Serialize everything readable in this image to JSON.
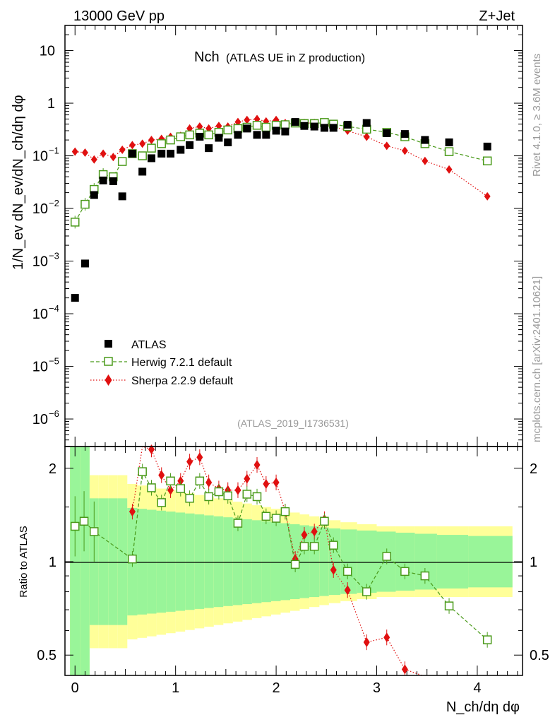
{
  "header": {
    "energy": "13000 GeV pp",
    "process": "Z+Jet"
  },
  "sidebar": {
    "rivet": "Rivet 4.1.0, ≥ 3.6M events",
    "mcplots": "mcplots.cern.ch [arXiv:2401.10621]"
  },
  "plot": {
    "title_main": "Nch",
    "title_sub": "(ATLAS UE in Z production)",
    "watermark": "(ATLAS_2019_I1736531)",
    "ylabel_top": "1/N_ev dN_ev/dN_ch/dη dφ",
    "ylabel_ratio": "Ratio to ATLAS",
    "xlabel": "N_ch/dη dφ"
  },
  "chart_data": {
    "type": "scatter",
    "title": "Nch (ATLAS UE in Z production)",
    "xlabel": "N_ch/dη dφ",
    "ylabel": "1/N_ev dN_ev/dN_ch/dη dφ",
    "yscale": "log",
    "xlim": [
      -0.1,
      4.45
    ],
    "ylim": [
      3e-07,
      30
    ],
    "xticks": [
      "0",
      "1",
      "2",
      "3",
      "4"
    ],
    "yticks": [
      "10^-6",
      "10^-5",
      "10^-4",
      "10^-3",
      "10^-2",
      "10^-1",
      "1",
      "10"
    ],
    "legend": [
      "ATLAS",
      "Herwig 7.2.1 default",
      "Sherpa 2.2.9 default"
    ],
    "legend_colors": {
      "ATLAS": "#000000",
      "Herwig": "#4a9a1a",
      "Sherpa": "#e01010"
    },
    "series": [
      {
        "name": "ATLAS",
        "x": [
          0.0,
          0.1,
          0.19,
          0.28,
          0.38,
          0.47,
          0.57,
          0.67,
          0.76,
          0.86,
          0.95,
          1.05,
          1.14,
          1.24,
          1.33,
          1.43,
          1.52,
          1.62,
          1.71,
          1.81,
          1.9,
          2.0,
          2.09,
          2.19,
          2.28,
          2.38,
          2.48,
          2.57,
          2.71,
          2.9,
          3.1,
          3.28,
          3.48,
          3.72,
          4.1
        ],
        "values": [
          0.0002,
          0.0009,
          0.018,
          0.034,
          0.033,
          0.017,
          0.11,
          0.05,
          0.09,
          0.11,
          0.11,
          0.13,
          0.16,
          0.23,
          0.14,
          0.22,
          0.18,
          0.25,
          0.33,
          0.25,
          0.25,
          0.3,
          0.29,
          0.44,
          0.37,
          0.36,
          0.34,
          0.34,
          0.39,
          0.42,
          0.27,
          0.26,
          0.2,
          0.18,
          0.15
        ]
      },
      {
        "name": "Herwig 7.2.1 default",
        "x": [
          0.0,
          0.1,
          0.19,
          0.28,
          0.38,
          0.47,
          0.57,
          0.67,
          0.76,
          0.86,
          0.95,
          1.05,
          1.14,
          1.24,
          1.33,
          1.43,
          1.52,
          1.62,
          1.71,
          1.81,
          1.9,
          2.0,
          2.09,
          2.19,
          2.28,
          2.38,
          2.48,
          2.57,
          2.71,
          2.9,
          3.1,
          3.28,
          3.48,
          3.72,
          4.1
        ],
        "values": [
          0.0055,
          0.012,
          0.023,
          0.044,
          0.04,
          0.078,
          0.11,
          0.1,
          0.14,
          0.17,
          0.2,
          0.23,
          0.25,
          0.27,
          0.25,
          0.28,
          0.31,
          0.33,
          0.35,
          0.38,
          0.35,
          0.38,
          0.39,
          0.42,
          0.41,
          0.41,
          0.43,
          0.4,
          0.36,
          0.32,
          0.28,
          0.23,
          0.17,
          0.12,
          0.08
        ]
      },
      {
        "name": "Sherpa 2.2.9 default",
        "x": [
          0.0,
          0.1,
          0.19,
          0.28,
          0.38,
          0.47,
          0.57,
          0.67,
          0.76,
          0.86,
          0.95,
          1.05,
          1.14,
          1.24,
          1.33,
          1.43,
          1.52,
          1.62,
          1.71,
          1.81,
          1.9,
          2.0,
          2.09,
          2.19,
          2.28,
          2.38,
          2.48,
          2.57,
          2.71,
          2.9,
          3.1,
          3.28,
          3.48,
          3.72,
          4.1
        ],
        "values": [
          0.12,
          0.115,
          0.085,
          0.11,
          0.095,
          0.13,
          0.16,
          0.17,
          0.2,
          0.21,
          0.23,
          0.24,
          0.33,
          0.36,
          0.33,
          0.37,
          0.36,
          0.44,
          0.48,
          0.5,
          0.45,
          0.48,
          0.42,
          0.43,
          0.42,
          0.42,
          0.41,
          0.36,
          0.3,
          0.23,
          0.155,
          0.125,
          0.08,
          0.055,
          0.017
        ]
      }
    ],
    "ratio": {
      "ylabel": "Ratio to ATLAS",
      "yscale": "log",
      "ylim": [
        0.43,
        2.35
      ],
      "yticks": [
        "0.5",
        "1",
        "2"
      ],
      "reference": 1.0,
      "herwig": {
        "x": [
          0.0,
          0.09,
          0.19,
          0.57,
          0.67,
          0.76,
          0.86,
          0.95,
          1.05,
          1.14,
          1.24,
          1.33,
          1.43,
          1.52,
          1.62,
          1.71,
          1.81,
          1.9,
          2.0,
          2.09,
          2.19,
          2.28,
          2.38,
          2.48,
          2.57,
          2.71,
          2.9,
          3.1,
          3.28,
          3.48,
          3.72,
          4.1
        ],
        "values": [
          1.3,
          1.35,
          1.25,
          1.02,
          1.95,
          1.73,
          1.55,
          1.82,
          1.72,
          1.6,
          1.82,
          1.62,
          1.68,
          1.63,
          1.33,
          1.65,
          1.62,
          1.4,
          1.38,
          1.45,
          0.98,
          1.12,
          1.12,
          1.35,
          1.13,
          0.93,
          0.8,
          1.04,
          0.93,
          0.9,
          0.72,
          0.56
        ]
      },
      "sherpa": {
        "x": [
          0.57,
          0.67,
          0.76,
          0.86,
          0.95,
          1.05,
          1.14,
          1.24,
          1.33,
          1.43,
          1.52,
          1.62,
          1.71,
          1.81,
          1.9,
          2.0,
          2.09,
          2.19,
          2.28,
          2.38,
          2.48,
          2.57,
          2.71,
          2.9,
          3.1,
          3.28
        ],
        "values": [
          1.45,
          2.35,
          2.3,
          1.9,
          1.7,
          1.82,
          2.1,
          2.17,
          1.8,
          1.72,
          1.7,
          1.7,
          1.85,
          2.05,
          1.78,
          1.8,
          1.45,
          1.02,
          1.22,
          1.25,
          1.37,
          0.94,
          0.81,
          0.55,
          0.57,
          0.45
        ]
      }
    }
  }
}
